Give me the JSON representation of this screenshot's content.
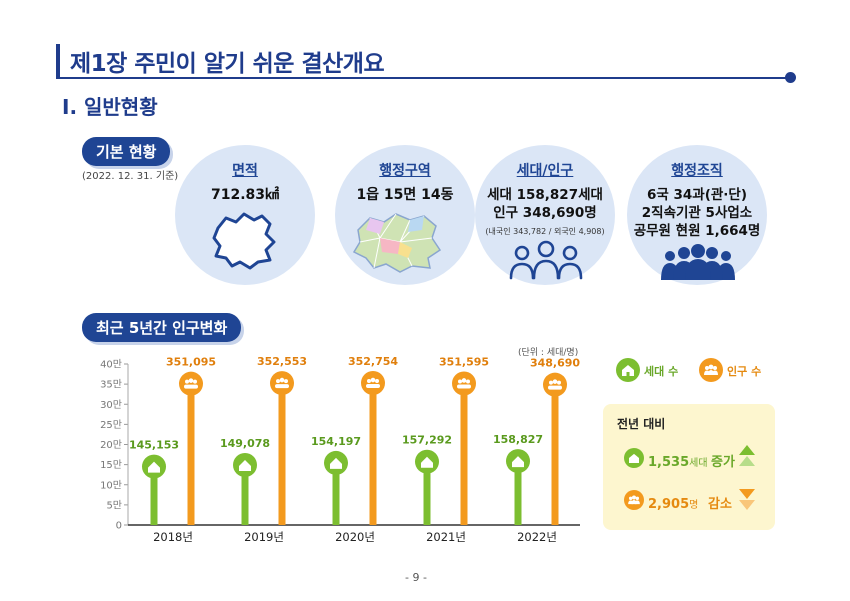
{
  "header": {
    "title": "제1장 주민이 알기 쉬운 결산개요",
    "section": "Ⅰ. 일반현황"
  },
  "basic": {
    "pill": "기본 현황",
    "date": "(2022. 12. 31. 기준)",
    "cards": [
      {
        "head": "면적",
        "lines": [
          "712.83㎢"
        ],
        "small": "",
        "icon": "map-outline-icon"
      },
      {
        "head": "행정구역",
        "lines": [
          "1읍 15면 14동"
        ],
        "small": "",
        "icon": "district-map-icon"
      },
      {
        "head": "세대/인구",
        "lines": [
          "세대 158,827세대",
          "인구 348,690명"
        ],
        "small": "(내국인 343,782 / 외국인 4,908)",
        "icon": "people-outline-icon"
      },
      {
        "head": "행정조직",
        "lines": [
          "6국 34과(관·단)",
          "2직속기관 5사업소",
          "공무원 현원 1,664명"
        ],
        "small": "",
        "icon": "staff-group-icon"
      }
    ]
  },
  "population": {
    "pill": "최근 5년간 인구변화",
    "unit": "(단위 : 세대/명)",
    "legend": {
      "households": "세대 수",
      "population": "인구 수"
    },
    "compare": {
      "title": "전년 대비",
      "households_value": "1,535",
      "households_unit": "세대",
      "households_change": "증가",
      "population_value": "2,905",
      "population_unit": "명",
      "population_change": "감소"
    }
  },
  "colors": {
    "navy": "#1f4594",
    "households": "#7cbe30",
    "population": "#f39a1e",
    "circle": "#dbe6f6"
  },
  "chart_data": {
    "type": "bar",
    "categories": [
      "2018년",
      "2019년",
      "2020년",
      "2021년",
      "2022년"
    ],
    "series": [
      {
        "name": "세대 수",
        "values": [
          145153,
          149078,
          154197,
          157292,
          158827
        ],
        "labels": [
          "145,153",
          "149,078",
          "154,197",
          "157,292",
          "158,827"
        ]
      },
      {
        "name": "인구 수",
        "values": [
          351095,
          352553,
          352754,
          351595,
          348690
        ],
        "labels": [
          "351,095",
          "352,553",
          "352,754",
          "351,595",
          "348,690"
        ]
      }
    ],
    "yticks": [
      "0",
      "5만",
      "10만",
      "15만",
      "20만",
      "25만",
      "30만",
      "35만",
      "40만"
    ],
    "ylim": [
      0,
      400000
    ],
    "title": "",
    "xlabel": "",
    "ylabel": ""
  },
  "page": "- 9 -"
}
